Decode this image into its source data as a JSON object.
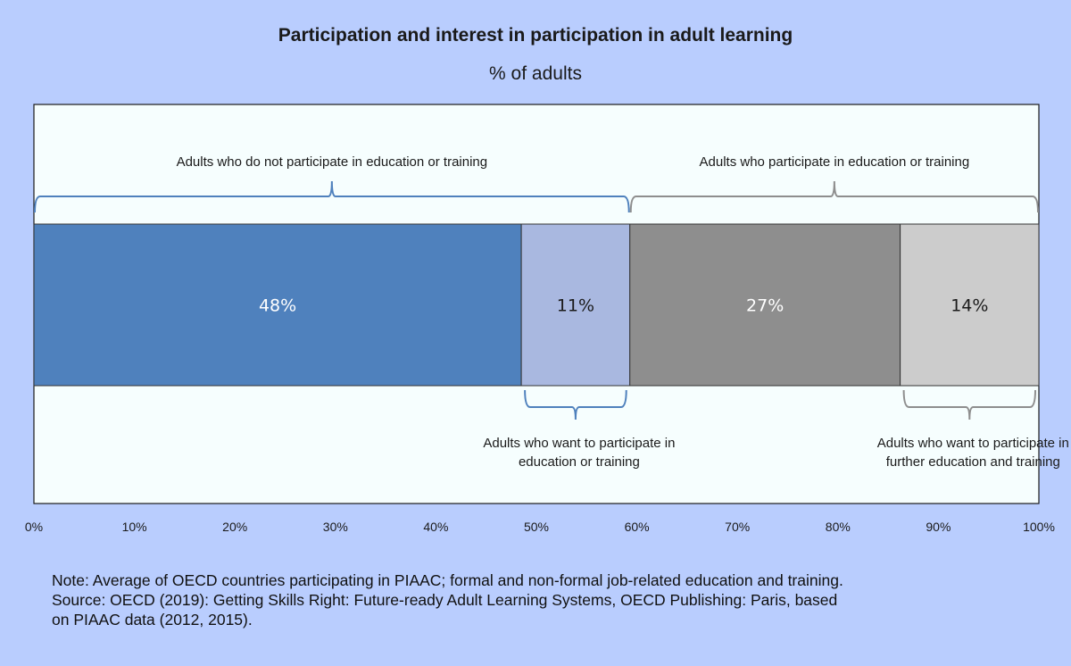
{
  "chart_data": {
    "type": "bar",
    "orientation": "horizontal-stacked",
    "title": "Participation and interest in participation in adult learning",
    "subtitle": "% of adults",
    "segments": [
      {
        "label": "48%",
        "value": 48.5,
        "color": "#4f81bd",
        "text_color": "#ffffff"
      },
      {
        "label": "11%",
        "value": 10.8,
        "color": "#a9b8e0",
        "text_color": "#1a1a1a"
      },
      {
        "label": "27%",
        "value": 26.9,
        "color": "#8e8e8e",
        "text_color": "#ffffff"
      },
      {
        "label": "14%",
        "value": 13.8,
        "color": "#cccccc",
        "text_color": "#1a1a1a"
      }
    ],
    "xlim": [
      0,
      100
    ],
    "xticks": [
      "0%",
      "10%",
      "20%",
      "30%",
      "40%",
      "50%",
      "60%",
      "70%",
      "80%",
      "90%",
      "100%"
    ],
    "annotations": {
      "top": [
        {
          "text": "Adults who do not participate in education or training",
          "from": 0,
          "to": 59.3,
          "color": "#4f81bd"
        },
        {
          "text": "Adults who participate in education or training",
          "from": 59.3,
          "to": 100,
          "color": "#8e8e8e"
        }
      ],
      "bottom": [
        {
          "lines": [
            "Adults who want to participate in",
            "education or training"
          ],
          "from": 48.5,
          "to": 59.3,
          "color": "#4f81bd"
        },
        {
          "lines": [
            "Adults who want to participate in",
            "further education and training"
          ],
          "from": 86.2,
          "to": 100,
          "color": "#8e8e8e"
        }
      ]
    }
  },
  "note": {
    "lines": [
      "Note: Average of OECD countries participating in PIAAC; formal and non-formal job-related education and training.",
      "Source: OECD (2019): Getting Skills Right: Future-ready Adult Learning Systems, OECD Publishing: Paris, based",
      "on PIAAC data (2012, 2015)."
    ]
  }
}
